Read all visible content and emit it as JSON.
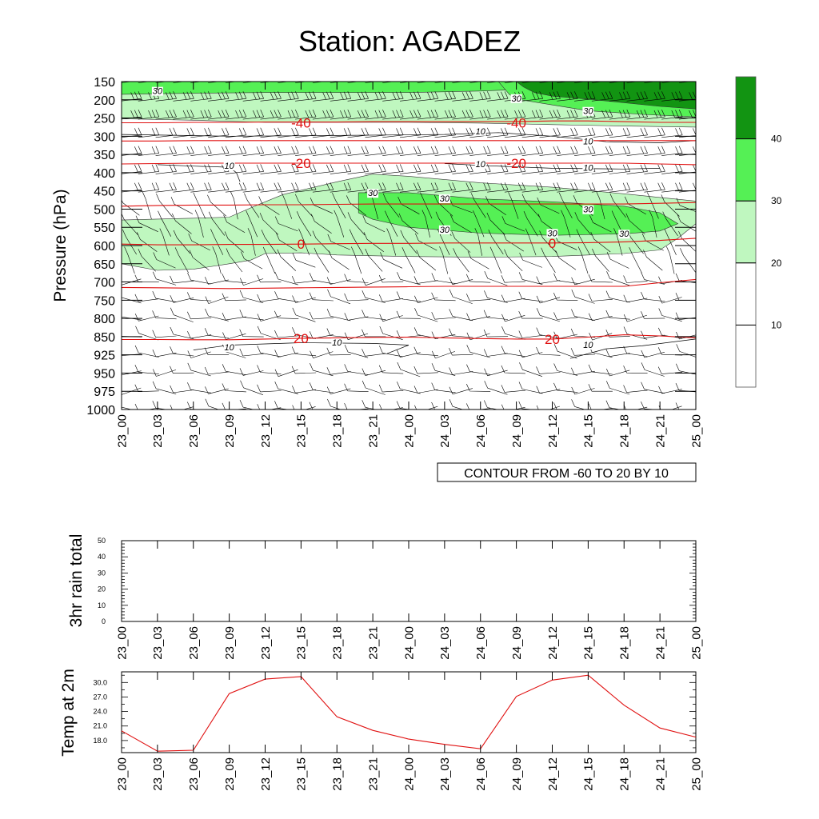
{
  "title": "Station: AGADEZ",
  "time_labels": [
    "23_00",
    "23_03",
    "23_06",
    "23_09",
    "23_12",
    "23_15",
    "23_18",
    "23_21",
    "24_00",
    "24_03",
    "24_06",
    "24_09",
    "24_12",
    "24_15",
    "24_18",
    "24_21",
    "25_00"
  ],
  "colors": {
    "band_20_30": "#bff7bf",
    "band_30_40": "#55f055",
    "band_40_plus": "#129412",
    "temp_contour": "#e01010",
    "wind_contour": "#000000",
    "barb": "#000000"
  },
  "chart_data": [
    {
      "type": "heatmap",
      "name": "pressure-time cross-section",
      "ylabel": "Pressure (hPa)",
      "pressure_levels": [
        150,
        200,
        250,
        300,
        350,
        400,
        450,
        500,
        550,
        600,
        650,
        700,
        750,
        800,
        850,
        925,
        950,
        975,
        1000
      ],
      "x": [
        "23_00",
        "23_03",
        "23_06",
        "23_09",
        "23_12",
        "23_15",
        "23_18",
        "23_21",
        "24_00",
        "24_03",
        "24_06",
        "24_09",
        "24_12",
        "24_15",
        "24_18",
        "24_21",
        "25_00"
      ],
      "ylim": [
        1000,
        150
      ],
      "info_label": "CONTOUR FROM -60 TO 20 BY 10",
      "wind_speed_shading": {
        "legend_levels": [
          "10",
          "20",
          "30",
          "40"
        ],
        "legend_position": "right"
      },
      "temperature_contours": [
        {
          "level": -40,
          "p": [
            263,
            263,
            262,
            262,
            261,
            261,
            261,
            260,
            260,
            260,
            260,
            260,
            258,
            258,
            260,
            262,
            262
          ]
        },
        {
          "level": -30,
          "p": [
            313,
            313,
            312,
            312,
            312,
            312,
            312,
            312,
            312,
            312,
            312,
            312,
            312,
            312,
            312,
            312,
            312
          ]
        },
        {
          "level": -20,
          "p": [
            376,
            375,
            374,
            374,
            374,
            374,
            374,
            374,
            374,
            374,
            374,
            374,
            374,
            374,
            374,
            376,
            378
          ]
        },
        {
          "level": -10,
          "p": [
            492,
            490,
            489,
            489,
            488,
            488,
            487,
            486,
            486,
            486,
            486,
            486,
            486,
            486,
            486,
            484,
            482
          ]
        },
        {
          "level": 0,
          "p": [
            596,
            598,
            598,
            597,
            597,
            596,
            595,
            594,
            594,
            593,
            593,
            593,
            593,
            592,
            590,
            586,
            580
          ]
        },
        {
          "level": 10,
          "p": [
            715,
            716,
            717,
            718,
            717,
            716,
            715,
            714,
            713,
            712,
            712,
            712,
            712,
            712,
            712,
            702,
            693
          ]
        },
        {
          "level": 20,
          "p": [
            862,
            862,
            863,
            863,
            860,
            857,
            855,
            853,
            852,
            855,
            858,
            860,
            860,
            852,
            845,
            848,
            855
          ]
        }
      ],
      "contour_labels_red": [
        {
          "text": "-40",
          "x": "23_15",
          "p": 263
        },
        {
          "text": "-40",
          "x": "24_09",
          "p": 263
        },
        {
          "text": "-20",
          "x": "23_15",
          "p": 374
        },
        {
          "text": "-20",
          "x": "24_09",
          "p": 374
        },
        {
          "text": "0",
          "x": "23_15",
          "p": 596
        },
        {
          "text": "0",
          "x": "24_12",
          "p": 593
        },
        {
          "text": "20",
          "x": "23_15",
          "p": 857
        },
        {
          "text": "20",
          "x": "24_12",
          "p": 860
        }
      ],
      "contour_labels_black": [
        {
          "text": "30",
          "x": "23_03",
          "p": 180
        },
        {
          "text": "30",
          "x": "24_09",
          "p": 200
        },
        {
          "text": "30",
          "x": "24_15",
          "p": 235
        },
        {
          "text": "10",
          "x": "24_06",
          "p": 290
        },
        {
          "text": "10",
          "x": "24_15",
          "p": 318
        },
        {
          "text": "10",
          "x": "23_09",
          "p": 385
        },
        {
          "text": "10",
          "x": "24_06",
          "p": 380
        },
        {
          "text": "10",
          "x": "24_15",
          "p": 390
        },
        {
          "text": "30",
          "x": "23_21",
          "p": 460
        },
        {
          "text": "30",
          "x": "24_03",
          "p": 475
        },
        {
          "text": "30",
          "x": "24_15",
          "p": 505
        },
        {
          "text": "30",
          "x": "24_03",
          "p": 560
        },
        {
          "text": "30",
          "x": "24_12",
          "p": 570
        },
        {
          "text": "30",
          "x": "24_18",
          "p": 572
        },
        {
          "text": "10",
          "x": "23_09",
          "p": 900
        },
        {
          "text": "10",
          "x": "23_18",
          "p": 880
        },
        {
          "text": "10",
          "x": "24_15",
          "p": 890
        }
      ]
    },
    {
      "type": "line",
      "name": "3hr rain total",
      "ylabel": "3hr rain total",
      "ylim": [
        0,
        50
      ],
      "yticks": [
        0,
        10,
        20,
        30,
        40,
        50
      ],
      "x": [
        "23_00",
        "23_03",
        "23_06",
        "23_09",
        "23_12",
        "23_15",
        "23_18",
        "23_21",
        "24_00",
        "24_03",
        "24_06",
        "24_09",
        "24_12",
        "24_15",
        "24_18",
        "24_21",
        "25_00"
      ],
      "values": [
        0,
        0,
        0,
        0,
        0,
        0,
        0,
        0,
        0,
        0,
        0,
        0,
        0,
        0,
        0,
        0,
        0
      ]
    },
    {
      "type": "line",
      "name": "Temp at 2m",
      "ylabel": "Temp at 2m",
      "ylim": [
        15.5,
        32.2
      ],
      "yticks": [
        "18.0",
        "21.0",
        "24.0",
        "27.0",
        "30.0"
      ],
      "x": [
        "23_00",
        "23_03",
        "23_06",
        "23_09",
        "23_12",
        "23_15",
        "23_18",
        "23_21",
        "24_00",
        "24_03",
        "24_06",
        "24_09",
        "24_12",
        "24_15",
        "24_18",
        "24_21",
        "25_00"
      ],
      "values": [
        20.0,
        15.8,
        16.0,
        27.7,
        30.7,
        31.2,
        22.9,
        20.1,
        18.3,
        17.2,
        16.3,
        27.1,
        30.5,
        31.5,
        25.3,
        20.6,
        18.7
      ],
      "line_color": "#e01010"
    }
  ]
}
